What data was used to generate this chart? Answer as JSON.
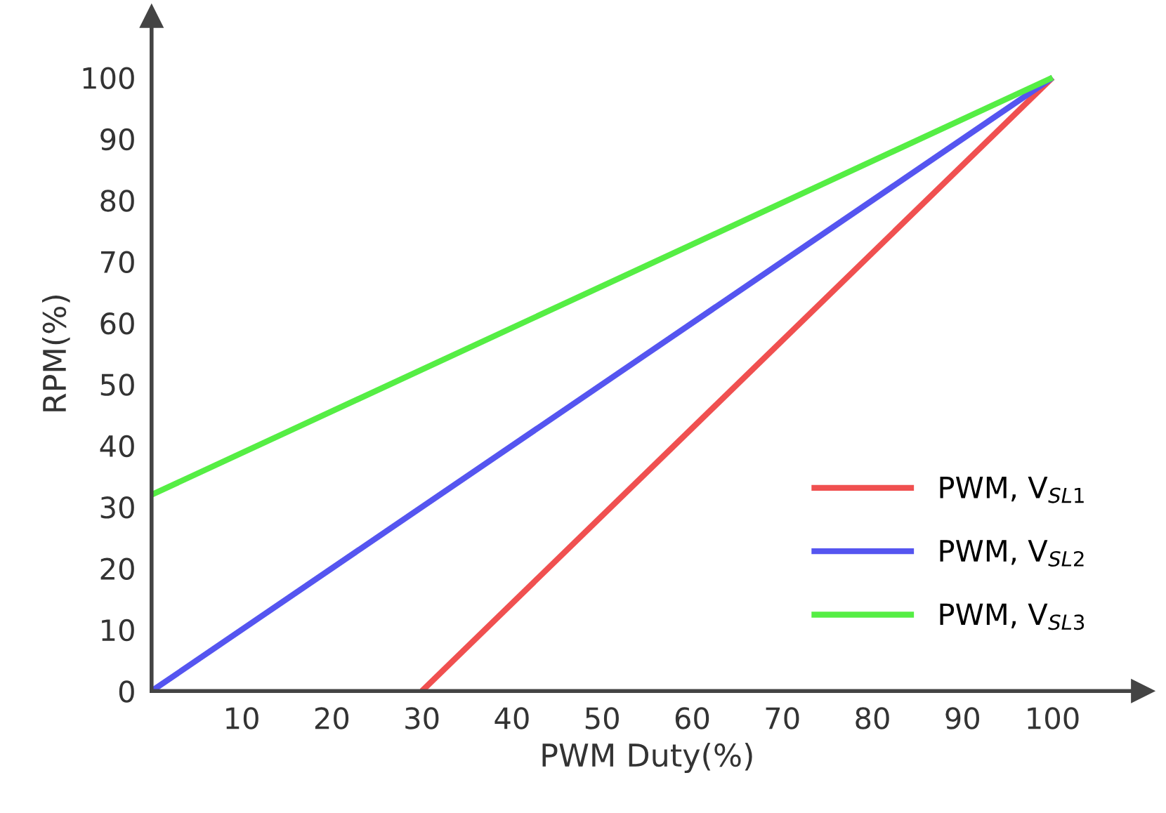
{
  "chart_data": {
    "type": "line",
    "xlabel": "PWM Duty(%)",
    "ylabel": "RPM(%)",
    "xlim": [
      0,
      110
    ],
    "ylim": [
      0,
      110
    ],
    "xticks": [
      10,
      20,
      30,
      40,
      50,
      60,
      70,
      80,
      90,
      100
    ],
    "yticks": [
      0,
      10,
      20,
      30,
      40,
      50,
      60,
      70,
      80,
      90,
      100
    ],
    "grid": false,
    "legend": "bottom right",
    "marker": "none",
    "line_style": "solid",
    "series": [
      {
        "name": "PWM, V$_{SL1}$",
        "color": "#f05050",
        "x": [
          30,
          100
        ],
        "values": [
          0,
          100
        ]
      },
      {
        "name": "PWM, V$_{SL2}$",
        "color": "#5555f0",
        "x": [
          0,
          100
        ],
        "values": [
          0,
          100
        ]
      },
      {
        "name": "PWM, V$_{SL3}$",
        "color": "#55ee44",
        "x": [
          0,
          100
        ],
        "values": [
          32,
          100
        ]
      }
    ]
  }
}
